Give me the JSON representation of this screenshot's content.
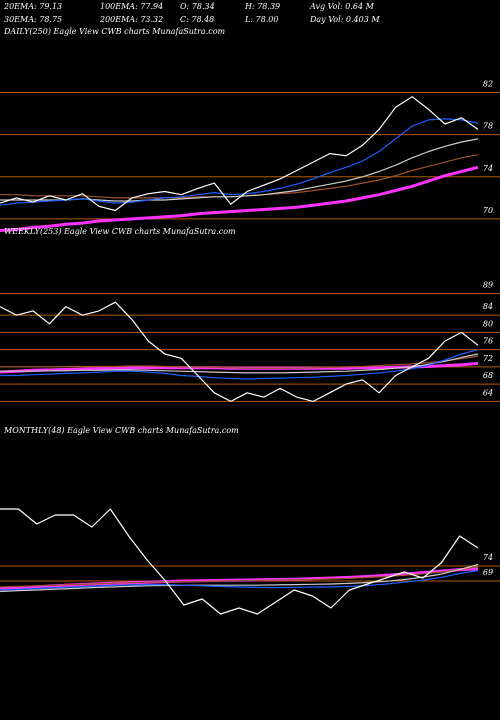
{
  "header": {
    "stats": [
      [
        "20EMA: 79.13",
        "100EMA: 77.94",
        "O: 78.34",
        "H: 78.39",
        "Avg Vol: 0.64  M"
      ],
      [
        "30EMA: 78.75",
        "200EMA: 73.32",
        "C: 78.48",
        "L: 78.00",
        "Day Vol: 0.403 M"
      ]
    ]
  },
  "chart_data": [
    {
      "type": "line",
      "title": "DAILY(250) Eagle  View  CWB charts MunafaSutra.com",
      "ylim": [
        68,
        83
      ],
      "yticks": [
        82,
        78,
        74,
        70
      ],
      "grid": true,
      "grid_color": "#b35a00",
      "series": [
        {
          "color": "#ffffff",
          "values": [
            71.5,
            72,
            71.6,
            72.2,
            71.8,
            72.4,
            71.2,
            70.8,
            72,
            72.4,
            72.6,
            72.3,
            72.9,
            73.4,
            71.4,
            72.6,
            73.2,
            73.8,
            74.6,
            75.4,
            76.2,
            76,
            77,
            78.5,
            80.6,
            81.6,
            80.4,
            79,
            79.6,
            78.5
          ]
        },
        {
          "color": "#1f5fff",
          "values": [
            71.3,
            71.5,
            71.6,
            71.7,
            71.8,
            71.9,
            71.7,
            71.5,
            71.6,
            71.8,
            72,
            72.1,
            72.3,
            72.5,
            72.3,
            72.4,
            72.6,
            72.9,
            73.3,
            73.8,
            74.4,
            74.9,
            75.5,
            76.4,
            77.6,
            78.8,
            79.4,
            79.5,
            79.4,
            79.1
          ]
        },
        {
          "color": "#cccccc",
          "values": [
            71.8,
            71.8,
            71.8,
            71.8,
            71.8,
            71.9,
            71.8,
            71.7,
            71.7,
            71.8,
            71.8,
            71.9,
            72,
            72.1,
            72.1,
            72.2,
            72.3,
            72.5,
            72.7,
            73,
            73.3,
            73.6,
            74,
            74.5,
            75.1,
            75.8,
            76.4,
            76.9,
            77.3,
            77.6
          ]
        },
        {
          "color": "#a0522d",
          "values": [
            72.3,
            72.3,
            72.2,
            72.2,
            72.2,
            72.2,
            72.1,
            72,
            72,
            72,
            72,
            72,
            72.1,
            72.1,
            72.1,
            72.2,
            72.3,
            72.4,
            72.5,
            72.7,
            72.9,
            73.1,
            73.4,
            73.7,
            74.1,
            74.6,
            75,
            75.4,
            75.8,
            76.1
          ]
        },
        {
          "color": "#ff33ff",
          "values": [
            68.9,
            69,
            69.2,
            69.3,
            69.5,
            69.6,
            69.8,
            69.9,
            70,
            70.1,
            70.2,
            70.3,
            70.5,
            70.6,
            70.7,
            70.8,
            70.9,
            71,
            71.1,
            71.3,
            71.5,
            71.7,
            72,
            72.3,
            72.7,
            73.1,
            73.6,
            74.1,
            74.5,
            74.9
          ]
        }
      ]
    },
    {
      "type": "line",
      "title": "WEEKLY(253) Eagle  View  CWB charts MunafaSutra.com",
      "ylim": [
        62,
        91
      ],
      "yticks": [
        89,
        84,
        80,
        76,
        72,
        68,
        64
      ],
      "grid": true,
      "grid_color": "#b35a00",
      "series": [
        {
          "color": "#ffffff",
          "values": [
            86,
            84,
            85,
            82,
            86,
            84,
            85,
            87,
            83,
            78,
            75,
            74,
            70,
            66,
            64,
            66,
            65,
            67,
            65,
            64,
            66,
            68,
            69,
            66,
            70,
            72,
            74,
            78,
            80,
            77
          ]
        },
        {
          "color": "#1f5fff",
          "values": [
            70,
            70,
            70.2,
            70.3,
            70.5,
            70.6,
            70.8,
            71,
            71,
            70.8,
            70.5,
            70,
            69.8,
            69.5,
            69.3,
            69.2,
            69.3,
            69.4,
            69.5,
            69.6,
            69.8,
            70,
            70.3,
            70.6,
            71,
            71.6,
            72.4,
            73.6,
            75,
            76
          ]
        },
        {
          "color": "#cccccc",
          "values": [
            71,
            71,
            71,
            71.1,
            71.1,
            71.2,
            71.2,
            71.3,
            71.3,
            71.2,
            71.1,
            71,
            70.9,
            70.8,
            70.7,
            70.6,
            70.6,
            70.6,
            70.7,
            70.8,
            70.9,
            71,
            71.2,
            71.4,
            71.7,
            72,
            72.6,
            73.3,
            74.2,
            75
          ]
        },
        {
          "color": "#a0522d",
          "values": [
            72,
            72,
            72,
            72,
            72.1,
            72.1,
            72.1,
            72.1,
            72.2,
            72.2,
            72.1,
            72,
            72,
            71.9,
            71.8,
            71.7,
            71.7,
            71.7,
            71.7,
            71.8,
            71.9,
            72,
            72.1,
            72.3,
            72.5,
            72.7,
            73,
            73.4,
            73.9,
            74.5
          ]
        },
        {
          "color": "#ff33ff",
          "values": [
            70.8,
            71,
            71.2,
            71.3,
            71.4,
            71.5,
            71.6,
            71.7,
            71.8,
            71.8,
            71.8,
            71.8,
            71.8,
            71.8,
            71.7,
            71.7,
            71.7,
            71.7,
            71.7,
            71.7,
            71.7,
            71.7,
            71.8,
            71.8,
            71.9,
            72,
            72.1,
            72.3,
            72.5,
            72.8
          ]
        }
      ]
    },
    {
      "type": "line",
      "title": "MONTHLY(48) Eagle  View  CWB charts MunafaSutra.com",
      "ylim": [
        56,
        120
      ],
      "yticks": [
        74,
        69
      ],
      "grid": true,
      "grid_color": "#b35a00",
      "series": [
        {
          "color": "#ffffff",
          "values": [
            93,
            93,
            88,
            91,
            91,
            87,
            93,
            84,
            76,
            69,
            61,
            63,
            58,
            60,
            58,
            62,
            66,
            64,
            60,
            66,
            68,
            70,
            72,
            70,
            75,
            84,
            80
          ]
        },
        {
          "color": "#1f5fff",
          "values": [
            66,
            66.2,
            66.5,
            66.8,
            67,
            67.2,
            67.5,
            67.7,
            67.8,
            67.8,
            67.6,
            67.4,
            67.2,
            67,
            66.9,
            66.8,
            66.9,
            67,
            67,
            67.2,
            67.5,
            68,
            68.6,
            69.3,
            70.2,
            71.5,
            72.5
          ]
        },
        {
          "color": "#cccccc",
          "values": [
            65.5,
            65.8,
            66,
            66.3,
            66.5,
            66.8,
            67,
            67.2,
            67.4,
            67.5,
            67.6,
            67.6,
            67.6,
            67.6,
            67.6,
            67.7,
            67.8,
            67.9,
            68,
            68.2,
            68.5,
            68.9,
            69.5,
            70.3,
            71.3,
            72.8,
            74.5
          ]
        },
        {
          "color": "#a0522d",
          "values": [
            67,
            67.2,
            67.4,
            67.6,
            67.8,
            68,
            68.2,
            68.4,
            68.6,
            68.7,
            68.8,
            68.9,
            69,
            69.1,
            69.2,
            69.3,
            69.4,
            69.5,
            69.7,
            69.9,
            70.2,
            70.5,
            70.9,
            71.4,
            72,
            72.8,
            73.8
          ]
        },
        {
          "color": "#ff33ff",
          "values": [
            66.5,
            66.8,
            67.1,
            67.4,
            67.7,
            68,
            68.2,
            68.4,
            68.6,
            68.8,
            69,
            69.1,
            69.2,
            69.3,
            69.4,
            69.5,
            69.6,
            69.8,
            70,
            70.2,
            70.5,
            70.9,
            71.3,
            71.8,
            72.3,
            72.8,
            73
          ]
        }
      ]
    }
  ]
}
